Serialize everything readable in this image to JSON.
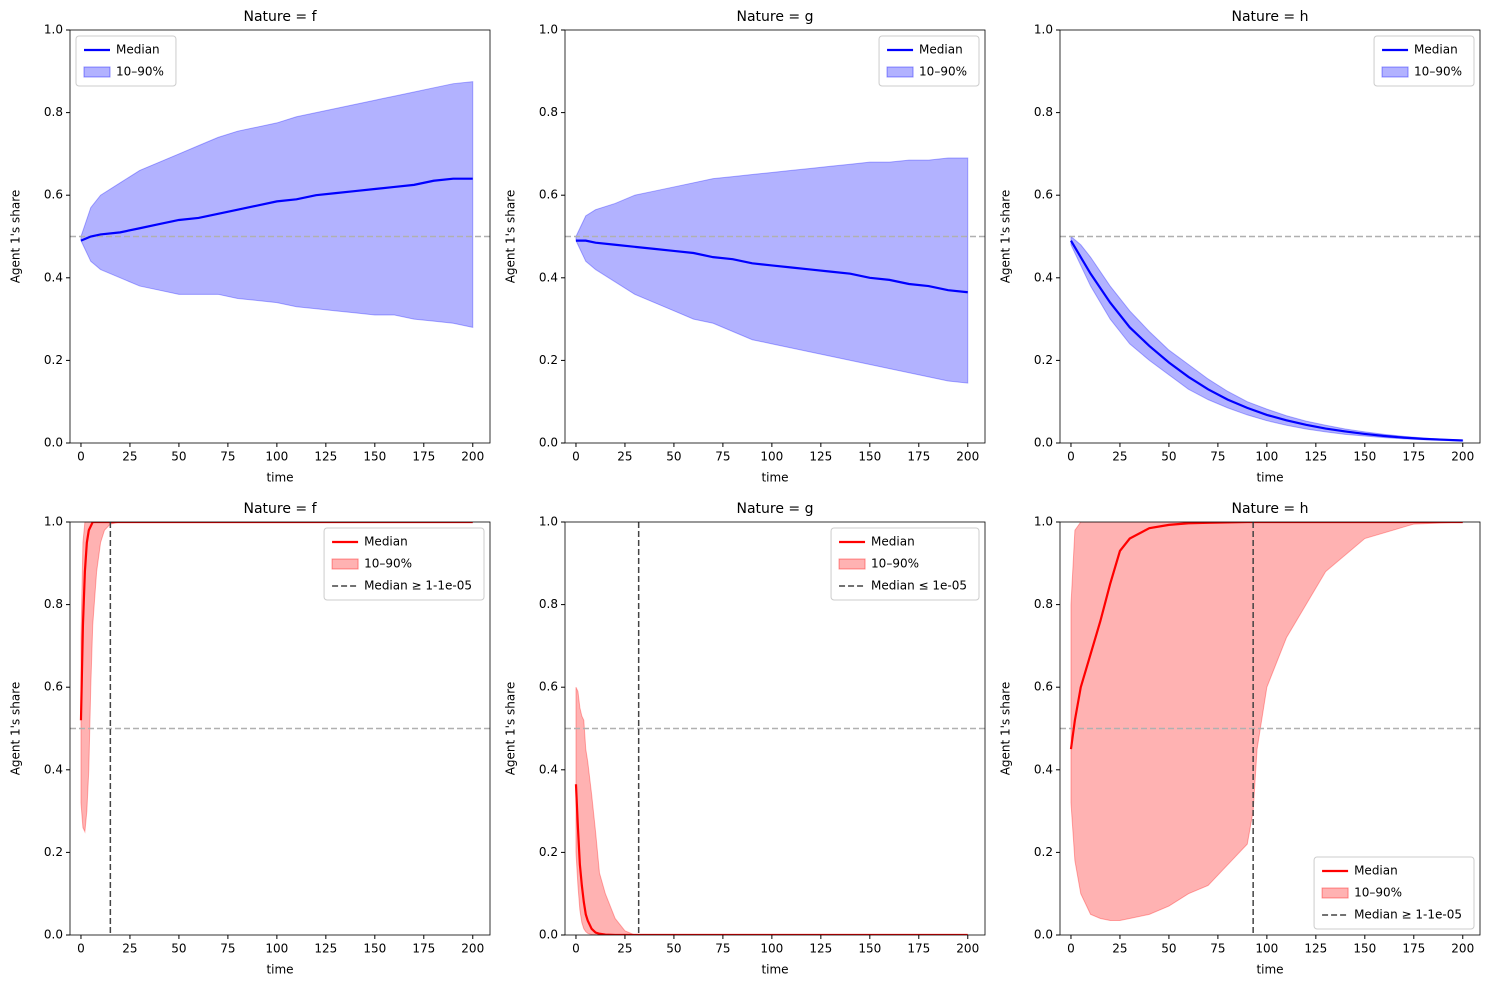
{
  "chart_data": [
    {
      "type": "line",
      "title": "Nature = f",
      "xlabel": "time",
      "ylabel": "Agent 1's share",
      "legend": "upper left",
      "hline": 0.5,
      "x": [
        0,
        5,
        10,
        20,
        30,
        40,
        50,
        60,
        70,
        80,
        90,
        100,
        110,
        120,
        130,
        140,
        150,
        160,
        170,
        180,
        190,
        200
      ],
      "series": [
        {
          "name": "Median",
          "color": "#0000ff",
          "values": [
            0.49,
            0.5,
            0.505,
            0.51,
            0.52,
            0.53,
            0.54,
            0.545,
            0.555,
            0.565,
            0.575,
            0.585,
            0.59,
            0.6,
            0.605,
            0.61,
            0.615,
            0.62,
            0.625,
            0.635,
            0.64,
            0.64
          ]
        },
        {
          "name": "10–90%",
          "color": "#0000ff",
          "upper": [
            0.5,
            0.57,
            0.6,
            0.63,
            0.66,
            0.68,
            0.7,
            0.72,
            0.74,
            0.755,
            0.765,
            0.775,
            0.79,
            0.8,
            0.81,
            0.82,
            0.83,
            0.84,
            0.85,
            0.86,
            0.87,
            0.875
          ],
          "lower": [
            0.49,
            0.44,
            0.42,
            0.4,
            0.38,
            0.37,
            0.36,
            0.36,
            0.36,
            0.35,
            0.345,
            0.34,
            0.33,
            0.325,
            0.32,
            0.315,
            0.31,
            0.31,
            0.3,
            0.295,
            0.29,
            0.28
          ]
        }
      ],
      "xlim": [
        -5.6,
        208.8
      ],
      "xticks": [
        0,
        25,
        50,
        75,
        100,
        125,
        150,
        175,
        200
      ],
      "ylim": [
        0,
        1
      ],
      "yticks": [
        {
          "value": 0,
          "label": "0.0"
        },
        0.2,
        0.4,
        0.6,
        0.8,
        {
          "value": 1,
          "label": "1.0"
        }
      ]
    },
    {
      "type": "line",
      "title": "Nature = g",
      "xlabel": "time",
      "ylabel": "Agent 1's share",
      "legend": "upper right",
      "hline": 0.5,
      "x": [
        0,
        5,
        10,
        20,
        30,
        40,
        50,
        60,
        70,
        80,
        90,
        100,
        110,
        120,
        130,
        140,
        150,
        160,
        170,
        180,
        190,
        200
      ],
      "series": [
        {
          "name": "Median",
          "color": "#0000ff",
          "values": [
            0.49,
            0.49,
            0.485,
            0.48,
            0.475,
            0.47,
            0.465,
            0.46,
            0.45,
            0.445,
            0.435,
            0.43,
            0.425,
            0.42,
            0.415,
            0.41,
            0.4,
            0.395,
            0.385,
            0.38,
            0.37,
            0.365
          ]
        },
        {
          "name": "10–90%",
          "color": "#0000ff",
          "upper": [
            0.5,
            0.55,
            0.565,
            0.58,
            0.6,
            0.61,
            0.62,
            0.63,
            0.64,
            0.645,
            0.65,
            0.655,
            0.66,
            0.665,
            0.67,
            0.675,
            0.68,
            0.68,
            0.685,
            0.685,
            0.69,
            0.69
          ],
          "lower": [
            0.49,
            0.44,
            0.42,
            0.39,
            0.36,
            0.34,
            0.32,
            0.3,
            0.29,
            0.27,
            0.25,
            0.24,
            0.23,
            0.22,
            0.21,
            0.2,
            0.19,
            0.18,
            0.17,
            0.16,
            0.15,
            0.145
          ]
        }
      ],
      "xlim": [
        -5.6,
        208.8
      ],
      "xticks": [
        0,
        25,
        50,
        75,
        100,
        125,
        150,
        175,
        200
      ],
      "ylim": [
        0,
        1
      ],
      "yticks": [
        {
          "value": 0,
          "label": "0.0"
        },
        0.2,
        0.4,
        0.6,
        0.8,
        {
          "value": 1,
          "label": "1.0"
        }
      ]
    },
    {
      "type": "line",
      "title": "Nature = h",
      "xlabel": "time",
      "ylabel": "Agent 1's share",
      "legend": "upper right",
      "hline": 0.5,
      "x": [
        0,
        5,
        10,
        20,
        30,
        40,
        50,
        60,
        70,
        80,
        90,
        100,
        110,
        120,
        130,
        140,
        150,
        160,
        170,
        180,
        190,
        200
      ],
      "series": [
        {
          "name": "Median",
          "color": "#0000ff",
          "values": [
            0.49,
            0.45,
            0.41,
            0.34,
            0.28,
            0.235,
            0.195,
            0.16,
            0.13,
            0.105,
            0.085,
            0.068,
            0.055,
            0.044,
            0.035,
            0.028,
            0.022,
            0.017,
            0.013,
            0.01,
            0.008,
            0.006
          ]
        },
        {
          "name": "10–90%",
          "color": "#0000ff",
          "upper": [
            0.5,
            0.48,
            0.45,
            0.38,
            0.32,
            0.27,
            0.225,
            0.19,
            0.155,
            0.125,
            0.1,
            0.082,
            0.066,
            0.053,
            0.043,
            0.034,
            0.027,
            0.021,
            0.016,
            0.012,
            0.009,
            0.007
          ],
          "lower": [
            0.48,
            0.43,
            0.38,
            0.3,
            0.24,
            0.2,
            0.165,
            0.13,
            0.105,
            0.085,
            0.068,
            0.054,
            0.043,
            0.034,
            0.027,
            0.021,
            0.017,
            0.013,
            0.01,
            0.008,
            0.006,
            0.005
          ]
        }
      ],
      "xlim": [
        -5.6,
        208.8
      ],
      "xticks": [
        0,
        25,
        50,
        75,
        100,
        125,
        150,
        175,
        200
      ],
      "ylim": [
        0,
        1
      ],
      "yticks": [
        {
          "value": 0,
          "label": "0.0"
        },
        0.2,
        0.4,
        0.6,
        0.8,
        {
          "value": 1,
          "label": "1.0"
        }
      ]
    },
    {
      "type": "line",
      "title": "Nature = f",
      "xlabel": "time",
      "ylabel": "Agent 1's share",
      "legend": "upper right",
      "hline": 0.5,
      "x": [
        0,
        1,
        2,
        3,
        4,
        5,
        6,
        8,
        10,
        12,
        15,
        20,
        30,
        50,
        100,
        150,
        200
      ],
      "series": [
        {
          "name": "Median",
          "color": "#ff0000",
          "values": [
            0.52,
            0.75,
            0.88,
            0.95,
            0.98,
            0.99,
            1,
            1,
            1,
            1,
            1,
            1,
            1,
            1,
            1,
            1,
            1
          ]
        },
        {
          "name": "10–90%",
          "color": "#ff0000",
          "upper": [
            0.72,
            0.95,
            1,
            1,
            1,
            1,
            1,
            1,
            1,
            1,
            1,
            1,
            1,
            1,
            1,
            1,
            1
          ],
          "lower": [
            0.32,
            0.26,
            0.25,
            0.3,
            0.4,
            0.6,
            0.75,
            0.88,
            0.95,
            0.98,
            0.995,
            1,
            1,
            1,
            1,
            1,
            1
          ]
        },
        {
          "name": "Median ≥ 1-1e-05",
          "color": "#444444",
          "vline": 15
        }
      ],
      "xlim": [
        -5.6,
        208.8
      ],
      "xticks": [
        0,
        25,
        50,
        75,
        100,
        125,
        150,
        175,
        200
      ],
      "ylim": [
        0,
        1
      ],
      "yticks": [
        {
          "value": 0,
          "label": "0.0"
        },
        0.2,
        0.4,
        0.6,
        0.8,
        {
          "value": 1,
          "label": "1.0"
        }
      ]
    },
    {
      "type": "line",
      "title": "Nature = g",
      "xlabel": "time",
      "ylabel": "Agent 1's share",
      "legend": "upper right",
      "hline": 0.5,
      "x": [
        0,
        1,
        2,
        3,
        4,
        5,
        6,
        8,
        10,
        12,
        15,
        20,
        25,
        30,
        50,
        100,
        150,
        200
      ],
      "series": [
        {
          "name": "Median",
          "color": "#ff0000",
          "values": [
            0.365,
            0.26,
            0.17,
            0.12,
            0.08,
            0.05,
            0.035,
            0.015,
            0.006,
            0.003,
            0.001,
            0,
            0,
            0,
            0,
            0,
            0,
            0
          ]
        },
        {
          "name": "10–90%",
          "color": "#ff0000",
          "upper": [
            0.6,
            0.59,
            0.55,
            0.53,
            0.52,
            0.45,
            0.42,
            0.34,
            0.25,
            0.15,
            0.1,
            0.04,
            0.01,
            0,
            0,
            0,
            0,
            0
          ],
          "lower": [
            0.2,
            0.12,
            0.06,
            0.03,
            0.015,
            0.008,
            0.004,
            0.001,
            0,
            0,
            0,
            0,
            0,
            0,
            0,
            0,
            0,
            0
          ]
        },
        {
          "name": "Median ≤ 1e-05",
          "color": "#444444",
          "vline": 32
        }
      ],
      "xlim": [
        -5.6,
        208.8
      ],
      "xticks": [
        0,
        25,
        50,
        75,
        100,
        125,
        150,
        175,
        200
      ],
      "ylim": [
        0,
        1
      ],
      "yticks": [
        {
          "value": 0,
          "label": "0.0"
        },
        0.2,
        0.4,
        0.6,
        0.8,
        {
          "value": 1,
          "label": "1.0"
        }
      ]
    },
    {
      "type": "line",
      "title": "Nature = h",
      "xlabel": "time",
      "ylabel": "Agent 1's share",
      "legend": "lower right",
      "hline": 0.5,
      "x": [
        0,
        2,
        5,
        10,
        15,
        20,
        25,
        30,
        40,
        50,
        60,
        70,
        80,
        90,
        93,
        95,
        100,
        110,
        120,
        130,
        150,
        175,
        200
      ],
      "series": [
        {
          "name": "Median",
          "color": "#ff0000",
          "values": [
            0.45,
            0.52,
            0.6,
            0.68,
            0.76,
            0.85,
            0.93,
            0.96,
            0.985,
            0.993,
            0.997,
            0.998,
            0.999,
            1,
            1,
            1,
            1,
            1,
            1,
            1,
            1,
            1,
            1
          ]
        },
        {
          "name": "10–90%",
          "color": "#ff0000",
          "upper": [
            0.8,
            0.98,
            1,
            1,
            1,
            1,
            1,
            1,
            1,
            1,
            1,
            1,
            1,
            1,
            1,
            1,
            1,
            1,
            1,
            1,
            1,
            1,
            1
          ],
          "lower": [
            0.32,
            0.18,
            0.1,
            0.05,
            0.04,
            0.035,
            0.035,
            0.04,
            0.05,
            0.07,
            0.1,
            0.12,
            0.17,
            0.22,
            0.3,
            0.45,
            0.6,
            0.72,
            0.8,
            0.88,
            0.96,
            0.995,
            1
          ]
        },
        {
          "name": "Median ≥ 1-1e-05",
          "color": "#444444",
          "vline": 93
        }
      ],
      "xlim": [
        -5.6,
        208.8
      ],
      "xticks": [
        0,
        25,
        50,
        75,
        100,
        125,
        150,
        175,
        200
      ],
      "ylim": [
        0,
        1
      ],
      "yticks": [
        {
          "value": 0,
          "label": "0.0"
        },
        0.2,
        0.4,
        0.6,
        0.8,
        {
          "value": 1,
          "label": "1.0"
        }
      ]
    }
  ]
}
